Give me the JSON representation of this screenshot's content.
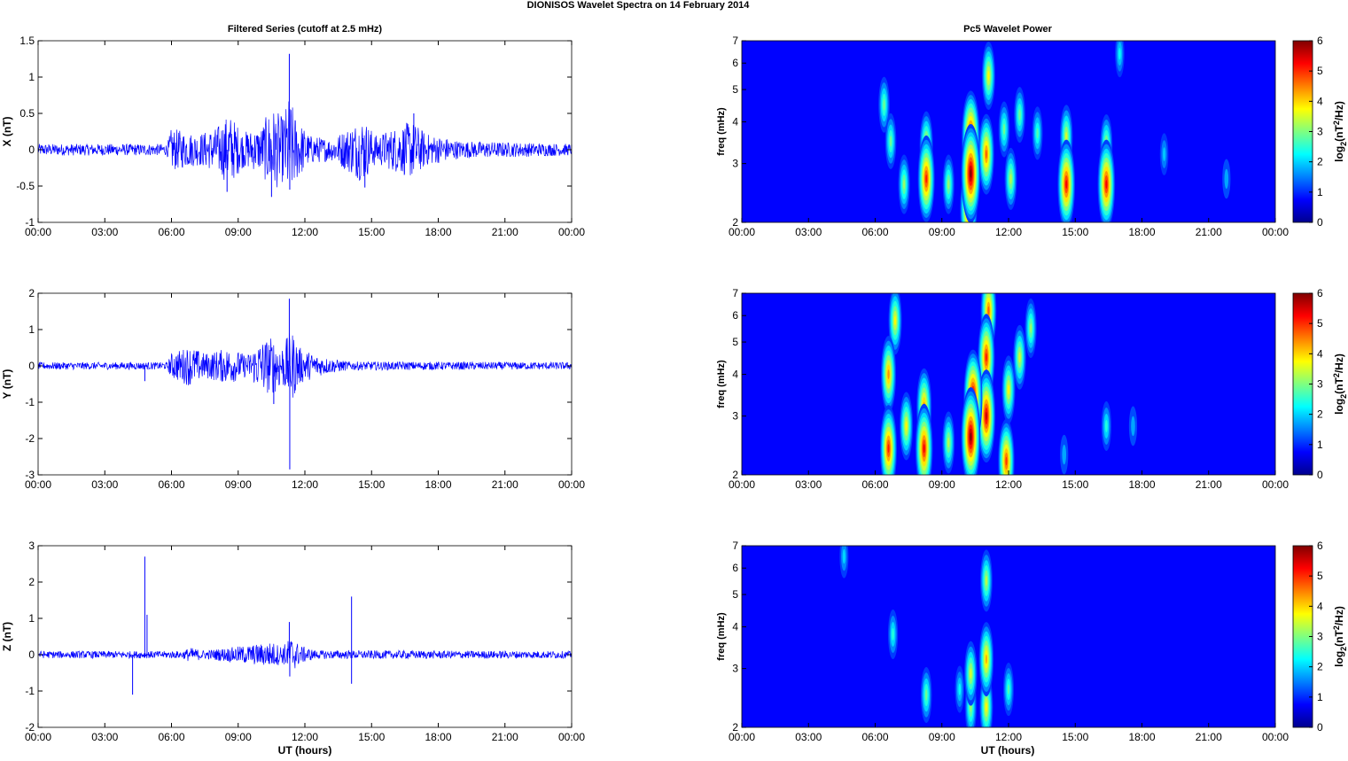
{
  "figure": {
    "title": "DIONISOS Wavelet Spectra on 14 February  2014",
    "left_column_title": "Filtered Series (cutoff at 2.5 mHz)",
    "right_column_title": "Pc5 Wavelet Power",
    "x_axis_label": "UT (hours)"
  },
  "chart_data": [
    {
      "type": "line",
      "component": "X",
      "ylabel": "X (nT)",
      "xlim_hours": [
        0,
        24
      ],
      "ylim": [
        -1,
        1.5
      ],
      "yticks": [
        "-1",
        "-0.5",
        "0",
        "0.5",
        "1",
        "1.5"
      ],
      "xticks": [
        "00:00",
        "03:00",
        "06:00",
        "09:00",
        "12:00",
        "15:00",
        "18:00",
        "21:00",
        "00:00"
      ],
      "color": "#0000ff",
      "envelope": [
        [
          0,
          0.08
        ],
        [
          5.8,
          0.08
        ],
        [
          6.0,
          0.3
        ],
        [
          6.6,
          0.25
        ],
        [
          7.2,
          0.22
        ],
        [
          8.0,
          0.3
        ],
        [
          8.6,
          0.5
        ],
        [
          9.2,
          0.25
        ],
        [
          10.0,
          0.3
        ],
        [
          10.5,
          0.6
        ],
        [
          11.0,
          0.45
        ],
        [
          11.3,
          0.75
        ],
        [
          11.6,
          0.45
        ],
        [
          12.2,
          0.2
        ],
        [
          13.2,
          0.15
        ],
        [
          14.6,
          0.45
        ],
        [
          15.2,
          0.2
        ],
        [
          16.8,
          0.4
        ],
        [
          17.5,
          0.22
        ],
        [
          19.0,
          0.12
        ],
        [
          24.0,
          0.08
        ]
      ],
      "spikes": [
        [
          11.3,
          1.32
        ],
        [
          11.32,
          -0.55
        ],
        [
          10.5,
          -0.65
        ],
        [
          8.5,
          -0.58
        ],
        [
          14.7,
          -0.52
        ],
        [
          16.9,
          0.5
        ]
      ],
      "x_units": "hours UT"
    },
    {
      "type": "line",
      "component": "Y",
      "ylabel": "Y (nT)",
      "xlim_hours": [
        0,
        24
      ],
      "ylim": [
        -3,
        2
      ],
      "yticks": [
        "-3",
        "-2",
        "-1",
        "0",
        "1",
        "2"
      ],
      "xticks": [
        "00:00",
        "03:00",
        "06:00",
        "09:00",
        "12:00",
        "15:00",
        "18:00",
        "21:00",
        "00:00"
      ],
      "color": "#0000ff",
      "envelope": [
        [
          0,
          0.1
        ],
        [
          5.8,
          0.1
        ],
        [
          6.0,
          0.35
        ],
        [
          6.8,
          0.55
        ],
        [
          7.5,
          0.35
        ],
        [
          8.6,
          0.5
        ],
        [
          9.4,
          0.3
        ],
        [
          10.0,
          0.7
        ],
        [
          10.5,
          0.8
        ],
        [
          11.0,
          0.6
        ],
        [
          11.4,
          1.0
        ],
        [
          11.8,
          0.5
        ],
        [
          12.5,
          0.3
        ],
        [
          13.2,
          0.2
        ],
        [
          14.0,
          0.12
        ],
        [
          24.0,
          0.1
        ]
      ],
      "spikes": [
        [
          11.3,
          1.85
        ],
        [
          11.32,
          -2.85
        ],
        [
          10.6,
          -1.05
        ],
        [
          4.8,
          -0.42
        ]
      ],
      "x_units": "hours UT"
    },
    {
      "type": "line",
      "component": "Z",
      "ylabel": "Z (nT)",
      "xlim_hours": [
        0,
        24
      ],
      "ylim": [
        -2,
        3
      ],
      "yticks": [
        "-2",
        "-1",
        "0",
        "1",
        "2",
        "3"
      ],
      "xticks": [
        "00:00",
        "03:00",
        "06:00",
        "09:00",
        "12:00",
        "15:00",
        "18:00",
        "21:00",
        "00:00"
      ],
      "color": "#0000ff",
      "envelope": [
        [
          0,
          0.1
        ],
        [
          6.5,
          0.1
        ],
        [
          6.8,
          0.2
        ],
        [
          7.5,
          0.12
        ],
        [
          10.0,
          0.3
        ],
        [
          10.5,
          0.35
        ],
        [
          11.0,
          0.25
        ],
        [
          11.4,
          0.5
        ],
        [
          11.8,
          0.25
        ],
        [
          12.5,
          0.12
        ],
        [
          24.0,
          0.1
        ]
      ],
      "spikes": [
        [
          4.8,
          2.7
        ],
        [
          4.9,
          1.1
        ],
        [
          4.25,
          -1.1
        ],
        [
          14.1,
          1.6
        ],
        [
          14.1,
          -0.8
        ],
        [
          11.3,
          0.9
        ],
        [
          11.32,
          -0.6
        ]
      ],
      "x_units": "hours UT"
    },
    {
      "type": "heatmap",
      "component": "X",
      "ylabel": "freq (mHz)",
      "y_scale": "log",
      "ylim_mhz": [
        2,
        7
      ],
      "yticks": [
        "2",
        "3",
        "4",
        "5",
        "6",
        "7"
      ],
      "xticks": [
        "00:00",
        "03:00",
        "06:00",
        "09:00",
        "12:00",
        "15:00",
        "18:00",
        "21:00",
        "00:00"
      ],
      "colorbar_label": "log2(nT2/Hz)",
      "colorbar_ticks": [
        "0",
        "1",
        "2",
        "3",
        "4",
        "5",
        "6"
      ],
      "zlim": [
        0,
        6
      ],
      "colormap": "jet",
      "blobs_hours_mhz_power": [
        [
          8.3,
          2.7,
          5.0
        ],
        [
          8.3,
          3.4,
          3.5
        ],
        [
          10.3,
          2.8,
          6.0
        ],
        [
          10.3,
          3.6,
          5.5
        ],
        [
          10.2,
          2.2,
          5.0
        ],
        [
          11.0,
          3.2,
          4.5
        ],
        [
          11.1,
          5.5,
          3.5
        ],
        [
          14.6,
          2.6,
          5.2
        ],
        [
          14.6,
          3.6,
          3.2
        ],
        [
          16.4,
          2.6,
          5.2
        ],
        [
          16.4,
          3.4,
          3.0
        ],
        [
          7.3,
          2.6,
          2.8
        ],
        [
          9.3,
          2.6,
          2.8
        ],
        [
          12.1,
          2.7,
          3.0
        ],
        [
          6.4,
          4.5,
          2.5
        ],
        [
          6.7,
          3.5,
          2.5
        ],
        [
          11.8,
          3.8,
          2.5
        ],
        [
          12.5,
          4.2,
          2.5
        ],
        [
          13.3,
          3.7,
          2.3
        ],
        [
          17.0,
          6.4,
          1.8
        ],
        [
          19.0,
          3.2,
          1.4
        ],
        [
          21.8,
          2.7,
          1.2
        ]
      ]
    },
    {
      "type": "heatmap",
      "component": "Y",
      "ylabel": "freq (mHz)",
      "y_scale": "log",
      "ylim_mhz": [
        2,
        7
      ],
      "yticks": [
        "2",
        "3",
        "4",
        "5",
        "6",
        "7"
      ],
      "xticks": [
        "00:00",
        "03:00",
        "06:00",
        "09:00",
        "12:00",
        "15:00",
        "18:00",
        "21:00",
        "00:00"
      ],
      "colorbar_label": "log2(nT2/Hz)",
      "colorbar_ticks": [
        "0",
        "1",
        "2",
        "3",
        "4",
        "5",
        "6"
      ],
      "zlim": [
        0,
        6
      ],
      "colormap": "jet",
      "blobs_hours_mhz_power": [
        [
          10.3,
          2.6,
          6.0
        ],
        [
          10.4,
          3.4,
          5.8
        ],
        [
          11.0,
          3.0,
          5.5
        ],
        [
          11.0,
          4.5,
          5.0
        ],
        [
          11.1,
          6.2,
          4.5
        ],
        [
          8.2,
          2.4,
          5.2
        ],
        [
          8.2,
          3.2,
          4.2
        ],
        [
          6.6,
          2.4,
          5.0
        ],
        [
          6.6,
          4.0,
          4.2
        ],
        [
          6.9,
          5.8,
          3.5
        ],
        [
          7.4,
          2.8,
          3.5
        ],
        [
          9.3,
          2.5,
          3.0
        ],
        [
          11.9,
          2.2,
          4.8
        ],
        [
          12.0,
          3.6,
          3.5
        ],
        [
          12.5,
          4.5,
          3.2
        ],
        [
          13.0,
          5.5,
          2.8
        ],
        [
          16.4,
          2.8,
          2.0
        ],
        [
          17.6,
          2.8,
          1.2
        ],
        [
          14.5,
          2.3,
          1.2
        ]
      ]
    },
    {
      "type": "heatmap",
      "component": "Z",
      "ylabel": "freq (mHz)",
      "y_scale": "log",
      "ylim_mhz": [
        2,
        7
      ],
      "yticks": [
        "2",
        "3",
        "4",
        "5",
        "6",
        "7"
      ],
      "xticks": [
        "00:00",
        "03:00",
        "06:00",
        "09:00",
        "12:00",
        "15:00",
        "18:00",
        "21:00",
        "00:00"
      ],
      "colorbar_label": "log2(nT2/Hz)",
      "colorbar_ticks": [
        "0",
        "1",
        "2",
        "3",
        "4",
        "5",
        "6"
      ],
      "zlim": [
        0,
        6
      ],
      "colormap": "jet",
      "blobs_hours_mhz_power": [
        [
          10.3,
          2.9,
          3.2
        ],
        [
          10.3,
          2.3,
          2.8
        ],
        [
          11.0,
          3.2,
          4.0
        ],
        [
          11.0,
          2.3,
          3.5
        ],
        [
          11.0,
          5.5,
          3.0
        ],
        [
          8.3,
          2.5,
          2.5
        ],
        [
          12.0,
          2.6,
          2.3
        ],
        [
          6.8,
          3.8,
          2.0
        ],
        [
          4.6,
          6.5,
          1.5
        ],
        [
          9.8,
          2.6,
          1.8
        ]
      ]
    }
  ]
}
